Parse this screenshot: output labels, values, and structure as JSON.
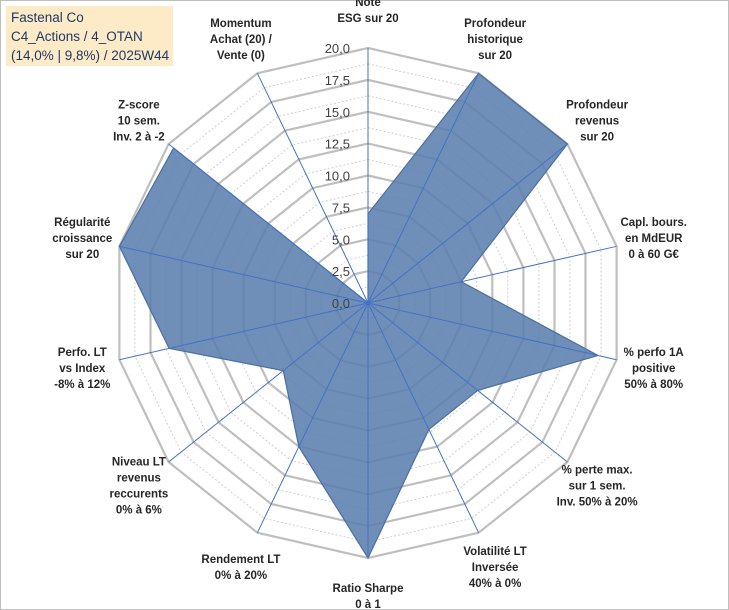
{
  "chart_data": {
    "type": "radar",
    "title_lines": [
      "Fastenal Co",
      "C4_Actions / 4_OTAN",
      "(14,0% | 9,8%) / 2025W44"
    ],
    "rmin": 0,
    "rmax": 20,
    "tick_step": 2.5,
    "tick_labels": [
      "0,0",
      "2,5",
      "5,0",
      "7,5",
      "10,0",
      "12,5",
      "15,0",
      "17,5",
      "20,0"
    ],
    "series": [
      {
        "name": "Fastenal Co",
        "fill_color": "#5b7faf",
        "line_color": "#4a6fa0",
        "values": [
          7,
          20,
          20,
          7.5,
          18.5,
          11,
          11,
          20,
          12.5,
          8.5,
          16,
          20,
          19.5,
          0
        ]
      }
    ],
    "axes": [
      {
        "lines": [
          "Note",
          "ESG sur 20"
        ]
      },
      {
        "lines": [
          "Profondeur",
          "historique",
          "sur 20"
        ]
      },
      {
        "lines": [
          "Profondeur",
          "revenus",
          "sur 20"
        ]
      },
      {
        "lines": [
          "Capl. bours.",
          "en MdEUR",
          "0 à 60 G€"
        ]
      },
      {
        "lines": [
          "% perfo 1A",
          "positive",
          "50% à 80%"
        ]
      },
      {
        "lines": [
          "% perte max.",
          "sur 1 sem.",
          "Inv. 50% à 20%"
        ]
      },
      {
        "lines": [
          "Volatilité LT",
          "Inversée",
          "40% à 0%"
        ]
      },
      {
        "lines": [
          "Ratio Sharpe",
          "0 à 1"
        ]
      },
      {
        "lines": [
          "Rendement LT",
          "0% à 20%"
        ]
      },
      {
        "lines": [
          "Niveau LT",
          "revenus",
          "reccurents",
          "0% à 6%"
        ]
      },
      {
        "lines": [
          "Perfo. LT",
          "vs Index",
          "-8% à 12%"
        ]
      },
      {
        "lines": [
          "Régularité",
          "croissance",
          "sur 20"
        ]
      },
      {
        "lines": [
          "Z-score",
          "10 sem.",
          "Inv. 2 à -2"
        ]
      },
      {
        "lines": [
          "Momentum",
          "Achat (20) /",
          "Vente (0)"
        ]
      }
    ]
  }
}
